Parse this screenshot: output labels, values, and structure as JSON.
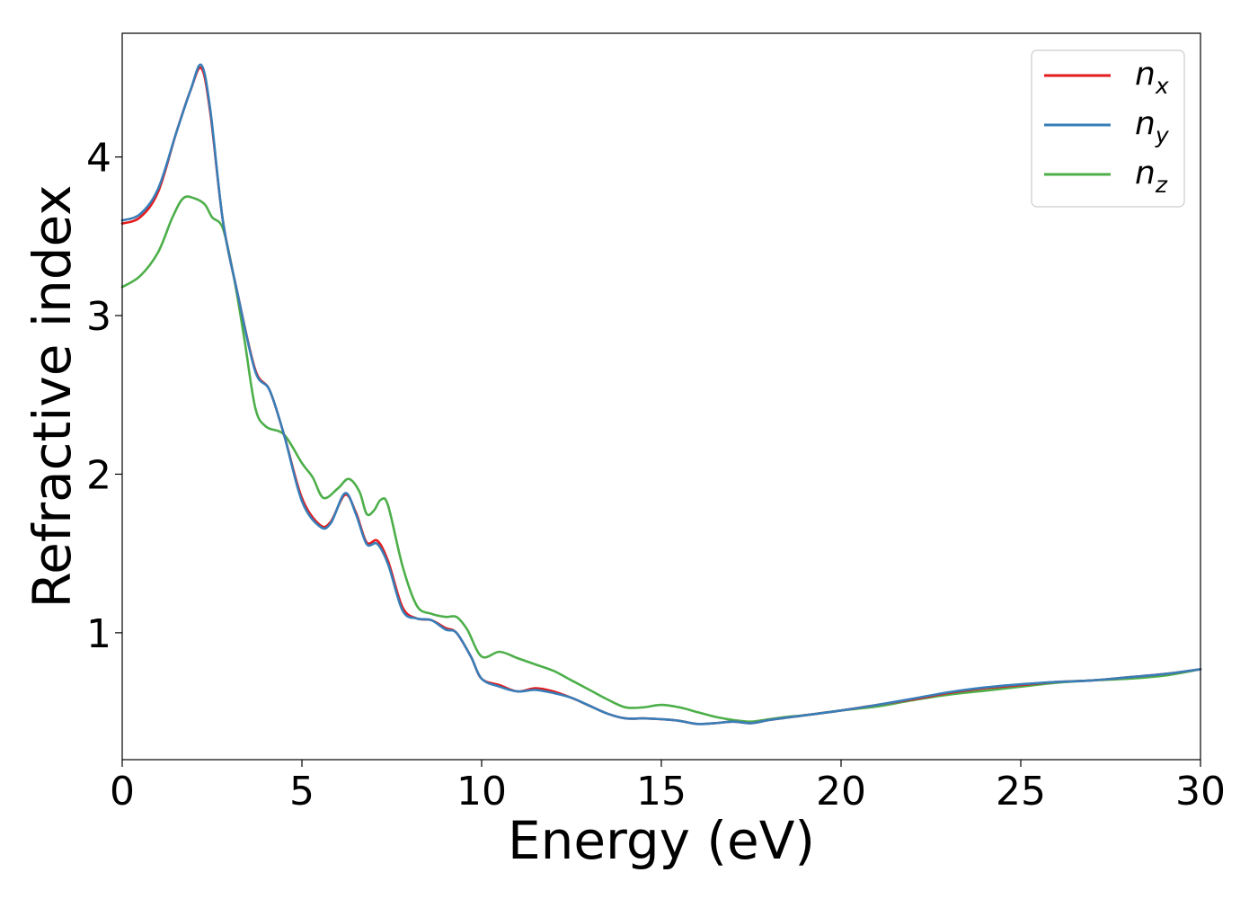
{
  "chart_data": {
    "type": "line",
    "xlabel": "Energy (eV)",
    "ylabel": "Refractive index",
    "xlim": [
      0,
      30
    ],
    "ylim": [
      0.2,
      4.78
    ],
    "xticks": [
      0,
      5,
      10,
      15,
      20,
      25,
      30
    ],
    "yticks": [
      1,
      2,
      3,
      4
    ],
    "grid": false,
    "legend_position": "top-right",
    "series": [
      {
        "name": "n_x",
        "label_main": "n",
        "label_sub": "x",
        "color": "#e41a1c",
        "points": [
          [
            0,
            3.58
          ],
          [
            0.5,
            3.62
          ],
          [
            1,
            3.78
          ],
          [
            1.5,
            4.15
          ],
          [
            1.9,
            4.42
          ],
          [
            2.2,
            4.56
          ],
          [
            2.45,
            4.28
          ],
          [
            2.8,
            3.6
          ],
          [
            3.2,
            3.15
          ],
          [
            3.7,
            2.66
          ],
          [
            4.1,
            2.53
          ],
          [
            4.5,
            2.25
          ],
          [
            5,
            1.85
          ],
          [
            5.5,
            1.68
          ],
          [
            5.8,
            1.7
          ],
          [
            6.2,
            1.87
          ],
          [
            6.5,
            1.76
          ],
          [
            6.8,
            1.57
          ],
          [
            7.1,
            1.58
          ],
          [
            7.4,
            1.45
          ],
          [
            7.8,
            1.16
          ],
          [
            8.2,
            1.09
          ],
          [
            8.6,
            1.08
          ],
          [
            9.0,
            1.03
          ],
          [
            9.3,
            1.0
          ],
          [
            9.7,
            0.85
          ],
          [
            10,
            0.71
          ],
          [
            10.5,
            0.67
          ],
          [
            11,
            0.63
          ],
          [
            11.5,
            0.65
          ],
          [
            12,
            0.63
          ],
          [
            12.5,
            0.59
          ],
          [
            13,
            0.54
          ],
          [
            13.5,
            0.49
          ],
          [
            14,
            0.46
          ],
          [
            14.5,
            0.46
          ],
          [
            15,
            0.455
          ],
          [
            15.5,
            0.445
          ],
          [
            16,
            0.425
          ],
          [
            16.5,
            0.43
          ],
          [
            17,
            0.44
          ],
          [
            17.5,
            0.43
          ],
          [
            18,
            0.45
          ],
          [
            18.5,
            0.465
          ],
          [
            19,
            0.48
          ],
          [
            20,
            0.51
          ],
          [
            21,
            0.545
          ],
          [
            22,
            0.58
          ],
          [
            23,
            0.62
          ],
          [
            24,
            0.65
          ],
          [
            25,
            0.67
          ],
          [
            26,
            0.69
          ],
          [
            27,
            0.7
          ],
          [
            28,
            0.72
          ],
          [
            29,
            0.74
          ],
          [
            30,
            0.77
          ]
        ]
      },
      {
        "name": "n_y",
        "label_main": "n",
        "label_sub": "y",
        "color": "#377eb8",
        "points": [
          [
            0,
            3.6
          ],
          [
            0.5,
            3.64
          ],
          [
            1,
            3.8
          ],
          [
            1.5,
            4.15
          ],
          [
            1.9,
            4.42
          ],
          [
            2.2,
            4.58
          ],
          [
            2.45,
            4.3
          ],
          [
            2.8,
            3.6
          ],
          [
            3.2,
            3.15
          ],
          [
            3.7,
            2.65
          ],
          [
            4.1,
            2.53
          ],
          [
            4.5,
            2.25
          ],
          [
            5,
            1.83
          ],
          [
            5.5,
            1.67
          ],
          [
            5.8,
            1.69
          ],
          [
            6.2,
            1.88
          ],
          [
            6.5,
            1.75
          ],
          [
            6.8,
            1.56
          ],
          [
            7.1,
            1.56
          ],
          [
            7.4,
            1.43
          ],
          [
            7.8,
            1.14
          ],
          [
            8.2,
            1.09
          ],
          [
            8.6,
            1.08
          ],
          [
            9.0,
            1.02
          ],
          [
            9.3,
            1.0
          ],
          [
            9.7,
            0.85
          ],
          [
            10,
            0.71
          ],
          [
            10.5,
            0.66
          ],
          [
            11,
            0.63
          ],
          [
            11.5,
            0.64
          ],
          [
            12,
            0.62
          ],
          [
            12.5,
            0.59
          ],
          [
            13,
            0.54
          ],
          [
            13.5,
            0.49
          ],
          [
            14,
            0.46
          ],
          [
            14.5,
            0.46
          ],
          [
            15,
            0.455
          ],
          [
            15.5,
            0.445
          ],
          [
            16,
            0.425
          ],
          [
            16.5,
            0.43
          ],
          [
            17,
            0.44
          ],
          [
            17.5,
            0.43
          ],
          [
            18,
            0.45
          ],
          [
            18.5,
            0.465
          ],
          [
            19,
            0.48
          ],
          [
            20,
            0.51
          ],
          [
            21,
            0.545
          ],
          [
            22,
            0.585
          ],
          [
            23,
            0.625
          ],
          [
            24,
            0.655
          ],
          [
            25,
            0.675
          ],
          [
            26,
            0.69
          ],
          [
            27,
            0.7
          ],
          [
            28,
            0.72
          ],
          [
            29,
            0.74
          ],
          [
            30,
            0.77
          ]
        ]
      },
      {
        "name": "n_z",
        "label_main": "n",
        "label_sub": "z",
        "color": "#4daf4a",
        "points": [
          [
            0,
            3.18
          ],
          [
            0.5,
            3.25
          ],
          [
            1,
            3.4
          ],
          [
            1.4,
            3.62
          ],
          [
            1.7,
            3.74
          ],
          [
            2.0,
            3.74
          ],
          [
            2.3,
            3.7
          ],
          [
            2.5,
            3.62
          ],
          [
            2.8,
            3.55
          ],
          [
            3.1,
            3.25
          ],
          [
            3.4,
            2.85
          ],
          [
            3.7,
            2.42
          ],
          [
            4.0,
            2.3
          ],
          [
            4.5,
            2.25
          ],
          [
            5,
            2.07
          ],
          [
            5.3,
            1.98
          ],
          [
            5.6,
            1.85
          ],
          [
            6.0,
            1.91
          ],
          [
            6.3,
            1.97
          ],
          [
            6.6,
            1.89
          ],
          [
            6.8,
            1.75
          ],
          [
            7.0,
            1.77
          ],
          [
            7.2,
            1.84
          ],
          [
            7.4,
            1.8
          ],
          [
            7.8,
            1.42
          ],
          [
            8.2,
            1.17
          ],
          [
            8.6,
            1.12
          ],
          [
            9.0,
            1.1
          ],
          [
            9.3,
            1.1
          ],
          [
            9.6,
            1.02
          ],
          [
            10,
            0.85
          ],
          [
            10.5,
            0.88
          ],
          [
            11,
            0.84
          ],
          [
            11.5,
            0.8
          ],
          [
            12,
            0.76
          ],
          [
            12.5,
            0.7
          ],
          [
            13,
            0.64
          ],
          [
            13.5,
            0.58
          ],
          [
            14,
            0.53
          ],
          [
            14.5,
            0.53
          ],
          [
            15,
            0.545
          ],
          [
            15.5,
            0.53
          ],
          [
            16,
            0.5
          ],
          [
            16.5,
            0.47
          ],
          [
            17,
            0.45
          ],
          [
            17.5,
            0.44
          ],
          [
            18,
            0.455
          ],
          [
            18.5,
            0.47
          ],
          [
            19,
            0.48
          ],
          [
            20,
            0.51
          ],
          [
            21,
            0.535
          ],
          [
            22,
            0.575
          ],
          [
            23,
            0.61
          ],
          [
            24,
            0.635
          ],
          [
            25,
            0.66
          ],
          [
            26,
            0.685
          ],
          [
            27,
            0.7
          ],
          [
            28,
            0.71
          ],
          [
            29,
            0.73
          ],
          [
            30,
            0.77
          ]
        ]
      }
    ]
  }
}
